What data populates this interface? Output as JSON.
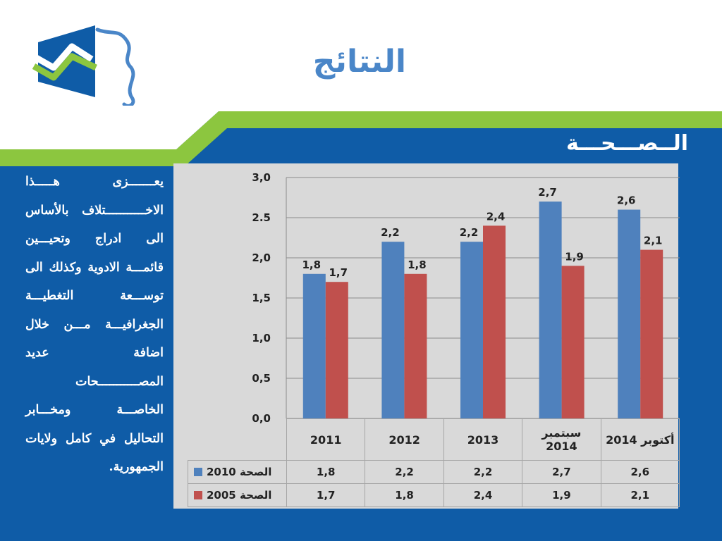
{
  "slide": {
    "title": "النتائج",
    "section": "الــصـــحـــة",
    "body_text": "يعـــــــزى هـــــذا الاخـــــــــــتلاف بالأساس الى ادراج وتحيـــين قائمـــة الادوية وكذلك الى توســـعة التغطيـــة الجغرافيـــة مـــن خلال اضافة عديد المصـــــــــــحات الخاصـــة ومخـــابر التحاليل في كامل ولايات الجمهورية."
  },
  "colors": {
    "band_blue": "#0f5ca7",
    "accent_green": "#8cc63f",
    "title_blue": "#4a86c8",
    "panel_gray": "#d9d9d9",
    "series_2010": "#4f81bd",
    "series_2005": "#c0504d"
  },
  "chart_data": {
    "type": "bar",
    "categories": [
      "2011",
      "2012",
      "2013",
      "سبتمبر 2014",
      "أكتوبر 2014"
    ],
    "category_lines": [
      [
        "2011"
      ],
      [
        "2012"
      ],
      [
        "2013"
      ],
      [
        "سبتمبر",
        "2014"
      ],
      [
        "أكتوبر 2014"
      ]
    ],
    "series": [
      {
        "name": "الصحة 2010",
        "values": [
          1.8,
          2.2,
          2.2,
          2.7,
          2.6
        ],
        "labels": [
          "1,8",
          "2,2",
          "2,2",
          "2,7",
          "2,6"
        ],
        "color": "#4f81bd"
      },
      {
        "name": "الصحة 2005",
        "values": [
          1.7,
          1.8,
          2.4,
          1.9,
          2.1
        ],
        "labels": [
          "1,7",
          "1,8",
          "2,4",
          "1,9",
          "2,1"
        ],
        "color": "#c0504d"
      }
    ],
    "ylim": [
      0,
      3
    ],
    "yticks": [
      0,
      0.5,
      1,
      1.5,
      2,
      2.5,
      3
    ],
    "ytick_labels": [
      "0,0",
      "0,5",
      "1,0",
      "1,5",
      "2,0",
      "2.5",
      "3,0"
    ],
    "grid": true,
    "data_table": true
  }
}
